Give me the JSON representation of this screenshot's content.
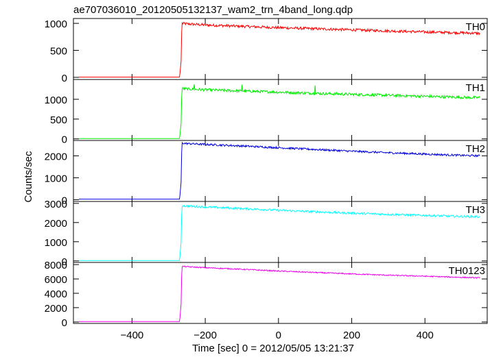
{
  "chart_data": {
    "type": "line",
    "title": "ae707036010_20120505132137_wam2_trn_4band_long.qdp",
    "xlabel": "Time [sec] 0 = 2012/05/05 13:21:37",
    "ylabel": "Counts/sec",
    "xlim": [
      -560,
      570
    ],
    "x_ticks": [
      -400,
      -200,
      0,
      200,
      400
    ],
    "x_tick_labels": [
      "−400",
      "−200",
      "0",
      "200",
      "400"
    ],
    "grid": false,
    "panels": [
      {
        "name": "TH0",
        "color": "#ff0000",
        "ylim": [
          -40,
          1090
        ],
        "y_ticks": [
          0,
          500,
          1000
        ],
        "y_tick_labels": [
          "0",
          "500",
          "1000"
        ],
        "data": {
          "x": [
            -545,
            -270,
            -266,
            -264,
            -250,
            -200,
            -100,
            0,
            100,
            200,
            300,
            400,
            500,
            550
          ],
          "y": [
            5,
            5,
            300,
            1000,
            990,
            970,
            945,
            920,
            900,
            880,
            860,
            840,
            825,
            815
          ]
        },
        "noise": 25
      },
      {
        "name": "TH1",
        "color": "#00ee00",
        "ylim": [
          -40,
          1500
        ],
        "y_ticks": [
          0,
          500,
          1000
        ],
        "y_tick_labels": [
          "0",
          "500",
          "1000"
        ],
        "data": {
          "x": [
            -545,
            -270,
            -266,
            -264,
            -250,
            -200,
            -100,
            0,
            100,
            200,
            300,
            400,
            500,
            550
          ],
          "y": [
            8,
            8,
            400,
            1270,
            1260,
            1240,
            1210,
            1180,
            1150,
            1125,
            1100,
            1075,
            1050,
            1040
          ],
          "spikes": [
            [
              -230,
              1380
            ],
            [
              -100,
              1370
            ],
            [
              100,
              1350
            ]
          ]
        },
        "noise": 35
      },
      {
        "name": "TH2",
        "color": "#0000dd",
        "ylim": [
          -80,
          2700
        ],
        "y_ticks": [
          0,
          1000,
          2000
        ],
        "y_tick_labels": [
          "0",
          "1000",
          "2000"
        ],
        "data": {
          "x": [
            -545,
            -270,
            -266,
            -264,
            -250,
            -200,
            -100,
            0,
            100,
            200,
            300,
            400,
            500,
            550
          ],
          "y": [
            25,
            25,
            800,
            2580,
            2560,
            2520,
            2450,
            2370,
            2290,
            2210,
            2140,
            2080,
            2020,
            2000
          ]
        },
        "noise": 45
      },
      {
        "name": "TH3",
        "color": "#00ffff",
        "ylim": [
          -80,
          3100
        ],
        "y_ticks": [
          0,
          1000,
          2000,
          3000
        ],
        "y_tick_labels": [
          "0",
          "1000",
          "2000",
          "3000"
        ],
        "data": {
          "x": [
            -545,
            -270,
            -266,
            -264,
            -250,
            -200,
            -100,
            0,
            100,
            200,
            300,
            400,
            500,
            550
          ],
          "y": [
            20,
            20,
            1000,
            2880,
            2860,
            2810,
            2730,
            2640,
            2560,
            2490,
            2430,
            2370,
            2320,
            2300
          ]
        },
        "noise": 55
      },
      {
        "name": "TH0123",
        "color": "#ee00ee",
        "ylim": [
          -200,
          8300
        ],
        "y_ticks": [
          0,
          2000,
          4000,
          6000,
          8000
        ],
        "y_tick_labels": [
          "0",
          "2000",
          "4000",
          "6000",
          "8000"
        ],
        "data": {
          "x": [
            -545,
            -270,
            -266,
            -264,
            -250,
            -200,
            -100,
            0,
            100,
            200,
            300,
            400,
            500,
            550
          ],
          "y": [
            60,
            60,
            2500,
            7750,
            7700,
            7570,
            7350,
            7100,
            6900,
            6700,
            6520,
            6380,
            6220,
            6150
          ]
        },
        "noise": 80
      }
    ]
  }
}
